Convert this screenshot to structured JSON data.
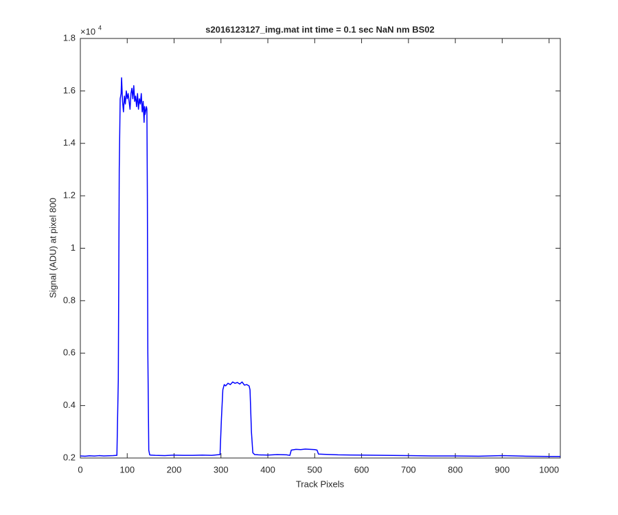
{
  "chart_data": {
    "type": "line",
    "title": "s2016123127_img.mat int time = 0.1 sec  NaN nm BS02",
    "x_label": "Track Pixels",
    "y_label": "Signal (ADU) at pixel 800",
    "y_multiplier": {
      "base": "×10",
      "exponent": "4"
    },
    "xlim": [
      0,
      1024
    ],
    "ylim": [
      2000,
      18000
    ],
    "xticks": [
      0,
      100,
      200,
      300,
      400,
      500,
      600,
      700,
      800,
      900,
      1000
    ],
    "yticks": [
      {
        "value": 2000,
        "label": "0.2"
      },
      {
        "value": 4000,
        "label": "0.4"
      },
      {
        "value": 6000,
        "label": "0.6"
      },
      {
        "value": 8000,
        "label": "0.8"
      },
      {
        "value": 10000,
        "label": "1"
      },
      {
        "value": 12000,
        "label": "1.2"
      },
      {
        "value": 14000,
        "label": "1.4"
      },
      {
        "value": 16000,
        "label": "1.6"
      },
      {
        "value": 18000,
        "label": "1.8"
      }
    ],
    "color": "#0000ff",
    "x": [
      0,
      10,
      20,
      30,
      40,
      50,
      60,
      70,
      78,
      81,
      83,
      85,
      87,
      88,
      90,
      92,
      94,
      96,
      98,
      100,
      102,
      104,
      106,
      108,
      110,
      112,
      114,
      116,
      118,
      120,
      122,
      124,
      126,
      128,
      130,
      132,
      134,
      136,
      137,
      138,
      140,
      141,
      142,
      143,
      144,
      146,
      148,
      150,
      160,
      180,
      200,
      220,
      240,
      260,
      280,
      298,
      301,
      304,
      307,
      310,
      315,
      320,
      325,
      330,
      335,
      340,
      345,
      350,
      355,
      360,
      362,
      365,
      368,
      372,
      380,
      400,
      420,
      440,
      447,
      450,
      460,
      470,
      480,
      490,
      500,
      505,
      508,
      520,
      550,
      600,
      650,
      700,
      750,
      800,
      850,
      900,
      950,
      1000,
      1024
    ],
    "values": [
      2080,
      2070,
      2085,
      2075,
      2090,
      2080,
      2085,
      2090,
      2100,
      5000,
      13000,
      15700,
      15900,
      16500,
      15600,
      15200,
      15800,
      15500,
      16000,
      15700,
      15900,
      15600,
      15300,
      15900,
      16100,
      15700,
      16200,
      15600,
      15800,
      15400,
      15900,
      15300,
      15700,
      15500,
      15900,
      15200,
      15600,
      14800,
      15400,
      15100,
      15300,
      15400,
      15300,
      12000,
      6000,
      2300,
      2120,
      2110,
      2100,
      2090,
      2110,
      2100,
      2100,
      2110,
      2100,
      2130,
      3500,
      4600,
      4800,
      4750,
      4850,
      4800,
      4900,
      4850,
      4880,
      4820,
      4900,
      4780,
      4800,
      4750,
      4600,
      3000,
      2200,
      2130,
      2120,
      2110,
      2130,
      2120,
      2100,
      2300,
      2330,
      2320,
      2340,
      2330,
      2320,
      2300,
      2150,
      2140,
      2120,
      2110,
      2100,
      2090,
      2080,
      2080,
      2070,
      2090,
      2070,
      2060,
      2060
    ]
  }
}
